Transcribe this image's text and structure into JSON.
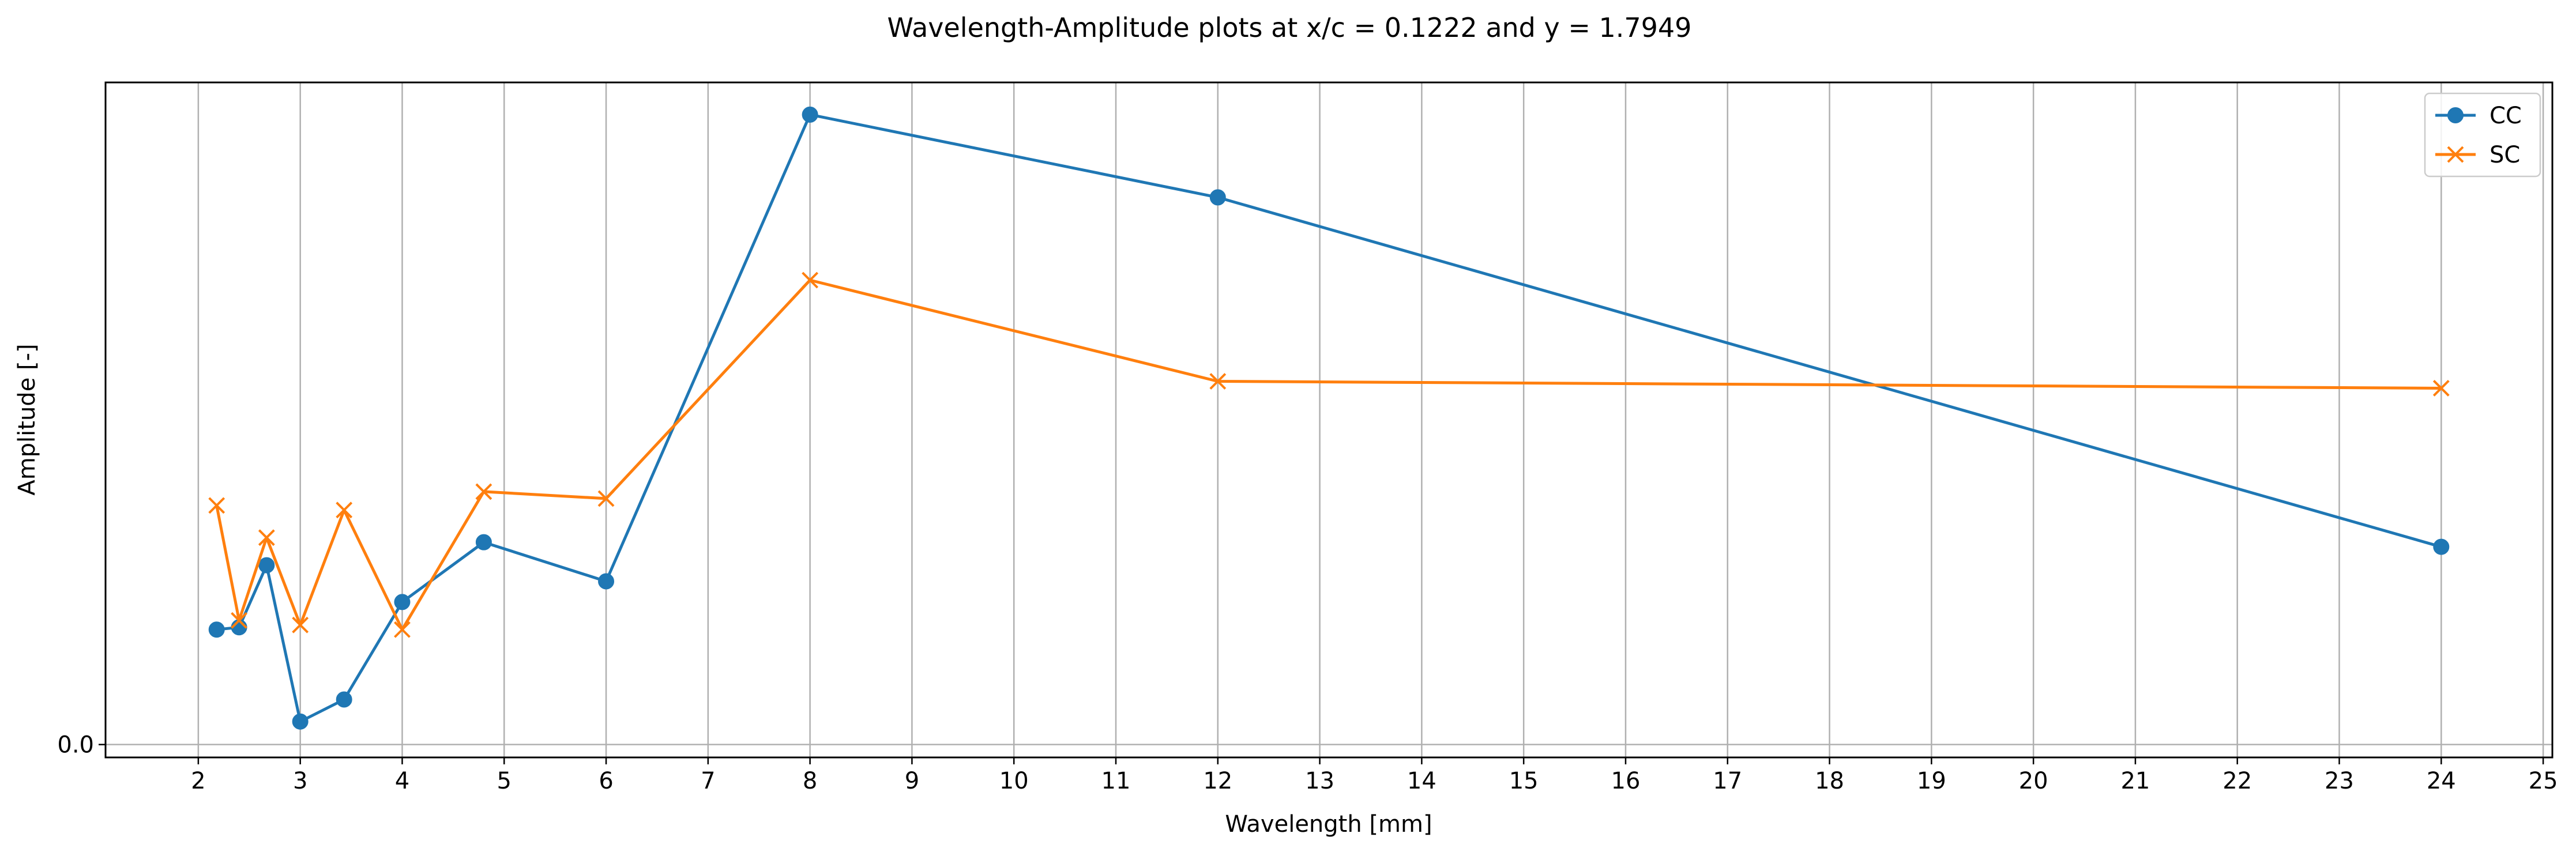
{
  "chart_data": {
    "type": "line",
    "title": "Wavelength-Amplitude plots at x/c = 0.1222 and y = 1.7949",
    "xlabel": "Wavelength [mm]",
    "ylabel": "Amplitude [-]",
    "xlim": [
      1.09,
      25.09
    ],
    "ylim": [
      -0.00028,
      0.0144
    ],
    "x_ticks": [
      2,
      3,
      4,
      5,
      6,
      7,
      8,
      9,
      10,
      11,
      12,
      13,
      14,
      15,
      16,
      17,
      18,
      19,
      20,
      21,
      22,
      23,
      24,
      25
    ],
    "x_tick_labels": [
      "2",
      "3",
      "4",
      "5",
      "6",
      "7",
      "8",
      "9",
      "10",
      "11",
      "12",
      "13",
      "14",
      "15",
      "16",
      "17",
      "18",
      "19",
      "20",
      "21",
      "22",
      "23",
      "24",
      "25"
    ],
    "y_ticks": [
      0.0
    ],
    "y_tick_labels": [
      "0.0"
    ],
    "grid": "vertical",
    "legend_position": "top-right",
    "series": [
      {
        "name": "CC",
        "color": "#1f77b4",
        "marker": "circle",
        "x": [
          2.18,
          2.4,
          2.67,
          3.0,
          3.43,
          4.0,
          4.8,
          6.0,
          8.0,
          12.0,
          24.0
        ],
        "y": [
          0.0025,
          0.00255,
          0.0039,
          0.0005,
          0.00098,
          0.0031,
          0.0044,
          0.00355,
          0.0137,
          0.0119,
          0.0043
        ]
      },
      {
        "name": "SC",
        "color": "#ff7f0e",
        "marker": "x",
        "x": [
          2.18,
          2.4,
          2.67,
          3.0,
          3.43,
          4.0,
          4.8,
          6.0,
          8.0,
          12.0,
          24.0
        ],
        "y": [
          0.0052,
          0.0027,
          0.0045,
          0.0026,
          0.0051,
          0.0025,
          0.0055,
          0.00535,
          0.0101,
          0.0079,
          0.00775
        ]
      }
    ]
  }
}
